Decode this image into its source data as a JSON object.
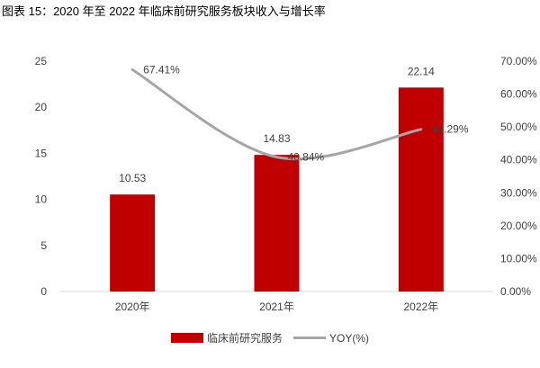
{
  "title": "图表 15：2020 年至 2022 年临床前研究服务板块收入与增长率",
  "colors": {
    "bar": "#C00000",
    "line": "#A6A6A6",
    "axis": "#D9D9D9",
    "text": "#404040"
  },
  "chart_data": {
    "type": "bar",
    "categories": [
      "2020年",
      "2021年",
      "2022年"
    ],
    "series": [
      {
        "name": "临床前研究服务",
        "type": "bar",
        "axis": "left",
        "values": [
          10.53,
          14.83,
          22.14
        ],
        "labels": [
          "10.53",
          "14.83",
          "22.14"
        ]
      },
      {
        "name": "YOY(%)",
        "type": "line",
        "axis": "right",
        "values": [
          67.41,
          40.84,
          49.29
        ],
        "labels": [
          "67.41%",
          "40.84%",
          "49.29%"
        ]
      }
    ],
    "left_axis": {
      "range": [
        0,
        25
      ],
      "ticks": [
        "0",
        "5",
        "10",
        "15",
        "20",
        "25"
      ]
    },
    "right_axis": {
      "range": [
        0,
        70
      ],
      "ticks": [
        "0.00%",
        "10.00%",
        "20.00%",
        "30.00%",
        "40.00%",
        "50.00%",
        "60.00%",
        "70.00%"
      ]
    },
    "legend_position": "bottom",
    "grid": false
  }
}
